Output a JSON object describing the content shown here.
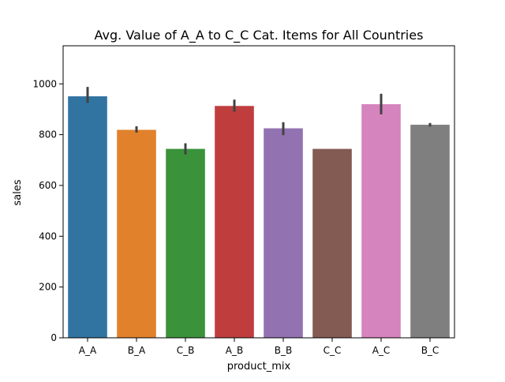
{
  "chart_data": {
    "type": "bar",
    "title": "Avg. Value of A_A to C_C Cat. Items for All Countries",
    "xlabel": "product_mix",
    "ylabel": "sales",
    "categories": [
      "A_A",
      "B_A",
      "C_B",
      "A_B",
      "B_B",
      "C_C",
      "A_C",
      "B_C"
    ],
    "values": [
      951,
      819,
      744,
      913,
      825,
      744,
      920,
      839
    ],
    "error_low": [
      925,
      808,
      722,
      890,
      798,
      744,
      880,
      832
    ],
    "error_high": [
      988,
      833,
      766,
      938,
      849,
      744,
      961,
      846
    ],
    "colors": [
      "#3274a1",
      "#e1812c",
      "#3a923a",
      "#c03d3e",
      "#9372b2",
      "#845b53",
      "#d684bd",
      "#7f7f7f"
    ],
    "ylim": [
      0,
      1150
    ],
    "yticks": [
      "0",
      "200",
      "400",
      "600",
      "800",
      "1000"
    ],
    "grid": false,
    "legend": "none"
  }
}
